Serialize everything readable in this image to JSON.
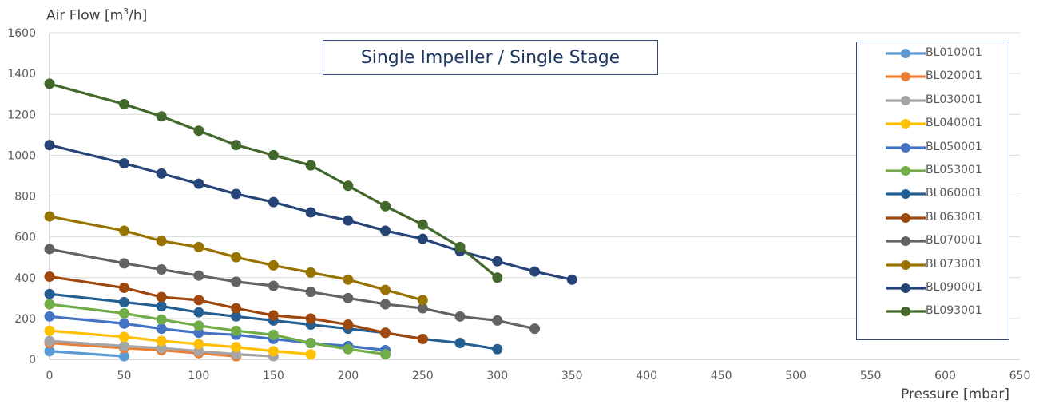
{
  "chart_data": {
    "type": "line",
    "title": "Single Impeller / Single Stage",
    "ylabel_text": "Air Flow  [m",
    "ylabel_sup": "3",
    "ylabel_tail": "/h]",
    "xlabel": "Pressure [mbar]",
    "xlim": [
      0,
      650
    ],
    "ylim": [
      0,
      1600
    ],
    "x_ticks": [
      0,
      50,
      100,
      150,
      200,
      250,
      300,
      350,
      400,
      450,
      500,
      550,
      600,
      650
    ],
    "y_ticks": [
      0,
      200,
      400,
      600,
      800,
      1000,
      1200,
      1400,
      1600
    ],
    "grid": "horizontal",
    "legend_position": "right",
    "series": [
      {
        "name": "BL010001",
        "color": "#5B9BD5",
        "x": [
          0,
          50
        ],
        "y": [
          40,
          15
        ]
      },
      {
        "name": "BL020001",
        "color": "#ED7D31",
        "x": [
          0,
          50,
          75,
          100,
          125
        ],
        "y": [
          80,
          55,
          45,
          30,
          15
        ]
      },
      {
        "name": "BL030001",
        "color": "#A5A5A5",
        "x": [
          0,
          50,
          75,
          100,
          125,
          150
        ],
        "y": [
          90,
          65,
          55,
          40,
          25,
          15
        ]
      },
      {
        "name": "BL040001",
        "color": "#FFC000",
        "x": [
          0,
          50,
          75,
          100,
          125,
          150,
          175
        ],
        "y": [
          140,
          110,
          90,
          75,
          60,
          40,
          25
        ]
      },
      {
        "name": "BL050001",
        "color": "#4472C4",
        "x": [
          0,
          50,
          75,
          100,
          125,
          150,
          175,
          200,
          225
        ],
        "y": [
          210,
          175,
          150,
          130,
          120,
          100,
          80,
          65,
          45
        ]
      },
      {
        "name": "BL053001",
        "color": "#70AD47",
        "x": [
          0,
          50,
          75,
          100,
          125,
          150,
          175,
          200,
          225
        ],
        "y": [
          270,
          225,
          195,
          165,
          140,
          120,
          80,
          50,
          25
        ]
      },
      {
        "name": "BL060001",
        "color": "#255E91",
        "x": [
          0,
          50,
          75,
          100,
          125,
          150,
          175,
          200,
          225,
          250,
          275,
          300
        ],
        "y": [
          320,
          280,
          260,
          230,
          210,
          190,
          170,
          150,
          130,
          100,
          80,
          50
        ]
      },
      {
        "name": "BL063001",
        "color": "#9E480E",
        "x": [
          0,
          50,
          75,
          100,
          125,
          150,
          175,
          200,
          225,
          250
        ],
        "y": [
          405,
          350,
          305,
          290,
          250,
          215,
          200,
          170,
          130,
          100
        ]
      },
      {
        "name": "BL070001",
        "color": "#636363",
        "x": [
          0,
          50,
          75,
          100,
          125,
          150,
          175,
          200,
          225,
          250,
          275,
          300,
          325
        ],
        "y": [
          540,
          470,
          440,
          410,
          380,
          360,
          330,
          300,
          270,
          250,
          210,
          190,
          150
        ]
      },
      {
        "name": "BL073001",
        "color": "#997300",
        "x": [
          0,
          50,
          75,
          100,
          125,
          150,
          175,
          200,
          225,
          250
        ],
        "y": [
          700,
          630,
          580,
          550,
          500,
          460,
          425,
          390,
          340,
          290
        ]
      },
      {
        "name": "BL090001",
        "color": "#264478",
        "x": [
          0,
          50,
          75,
          100,
          125,
          150,
          175,
          200,
          225,
          250,
          275,
          300,
          325,
          350
        ],
        "y": [
          1050,
          960,
          910,
          860,
          810,
          770,
          720,
          680,
          630,
          590,
          530,
          480,
          430,
          390
        ]
      },
      {
        "name": "BL093001",
        "color": "#43682B",
        "x": [
          0,
          50,
          75,
          100,
          125,
          150,
          175,
          200,
          225,
          250,
          275,
          300
        ],
        "y": [
          1350,
          1250,
          1190,
          1120,
          1050,
          1000,
          950,
          850,
          750,
          660,
          550,
          400
        ]
      }
    ]
  }
}
